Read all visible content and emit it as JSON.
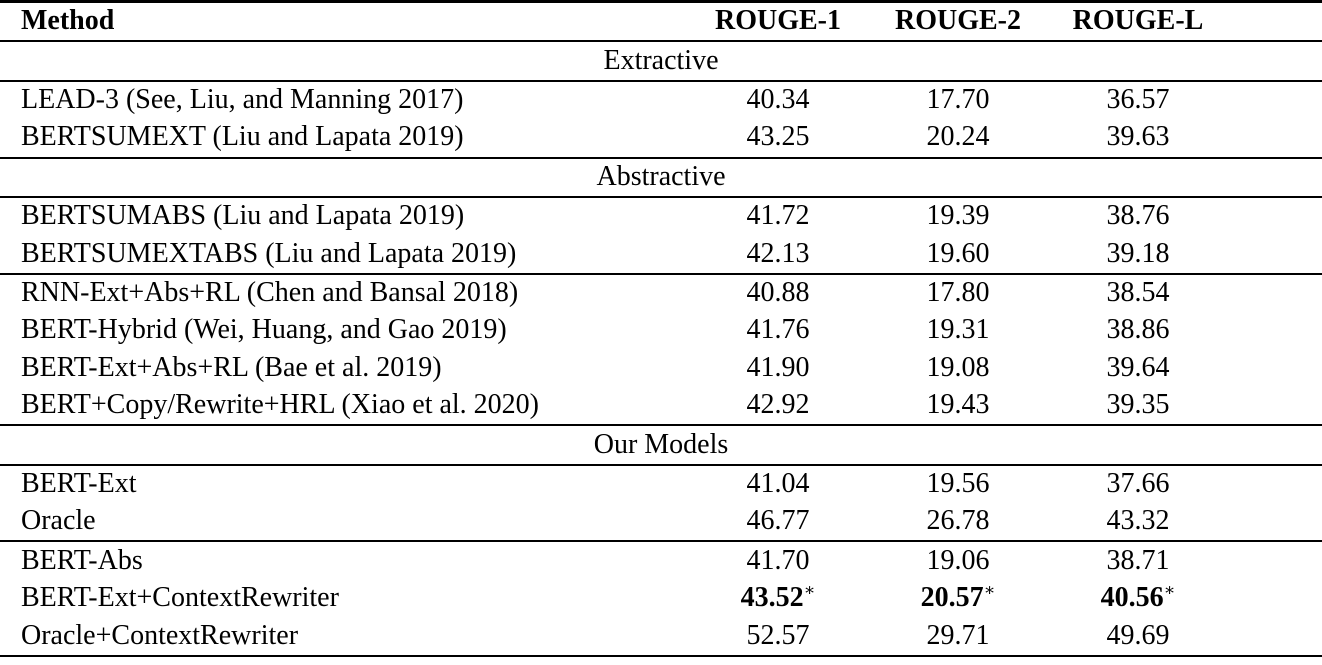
{
  "table": {
    "columns": [
      {
        "label": "Method"
      },
      {
        "label": "ROUGE-1"
      },
      {
        "label": "ROUGE-2"
      },
      {
        "label": "ROUGE-L"
      }
    ],
    "star_marker": "∗",
    "sections": [
      {
        "label": "Extractive",
        "groups": [
          [
            {
              "method": "LEAD-3 (See, Liu, and Manning 2017)",
              "values": [
                "40.34",
                "17.70",
                "36.57"
              ],
              "bold": false,
              "star": false
            },
            {
              "method": "BERTSUMEXT (Liu and Lapata 2019)",
              "values": [
                "43.25",
                "20.24",
                "39.63"
              ],
              "bold": false,
              "star": false
            }
          ]
        ]
      },
      {
        "label": "Abstractive",
        "groups": [
          [
            {
              "method": "BERTSUMABS (Liu and Lapata 2019)",
              "values": [
                "41.72",
                "19.39",
                "38.76"
              ],
              "bold": false,
              "star": false
            },
            {
              "method": "BERTSUMEXTABS (Liu and Lapata 2019)",
              "values": [
                "42.13",
                "19.60",
                "39.18"
              ],
              "bold": false,
              "star": false
            }
          ],
          [
            {
              "method": "RNN-Ext+Abs+RL (Chen and Bansal 2018)",
              "values": [
                "40.88",
                "17.80",
                "38.54"
              ],
              "bold": false,
              "star": false
            },
            {
              "method": "BERT-Hybrid (Wei, Huang, and Gao 2019)",
              "values": [
                "41.76",
                "19.31",
                "38.86"
              ],
              "bold": false,
              "star": false
            },
            {
              "method": "BERT-Ext+Abs+RL (Bae et al. 2019)",
              "values": [
                "41.90",
                "19.08",
                "39.64"
              ],
              "bold": false,
              "star": false
            },
            {
              "method": "BERT+Copy/Rewrite+HRL (Xiao et al. 2020)",
              "values": [
                "42.92",
                "19.43",
                "39.35"
              ],
              "bold": false,
              "star": false
            }
          ]
        ]
      },
      {
        "label": "Our Models",
        "groups": [
          [
            {
              "method": "BERT-Ext",
              "values": [
                "41.04",
                "19.56",
                "37.66"
              ],
              "bold": false,
              "star": false
            },
            {
              "method": "Oracle",
              "values": [
                "46.77",
                "26.78",
                "43.32"
              ],
              "bold": false,
              "star": false
            }
          ],
          [
            {
              "method": "BERT-Abs",
              "values": [
                "41.70",
                "19.06",
                "38.71"
              ],
              "bold": false,
              "star": false
            },
            {
              "method": "BERT-Ext+ContextRewriter",
              "values": [
                "43.52",
                "20.57",
                "40.56"
              ],
              "bold": true,
              "star": true
            },
            {
              "method": "Oracle+ContextRewriter",
              "values": [
                "52.57",
                "29.71",
                "49.69"
              ],
              "bold": false,
              "star": false
            }
          ]
        ]
      }
    ]
  }
}
